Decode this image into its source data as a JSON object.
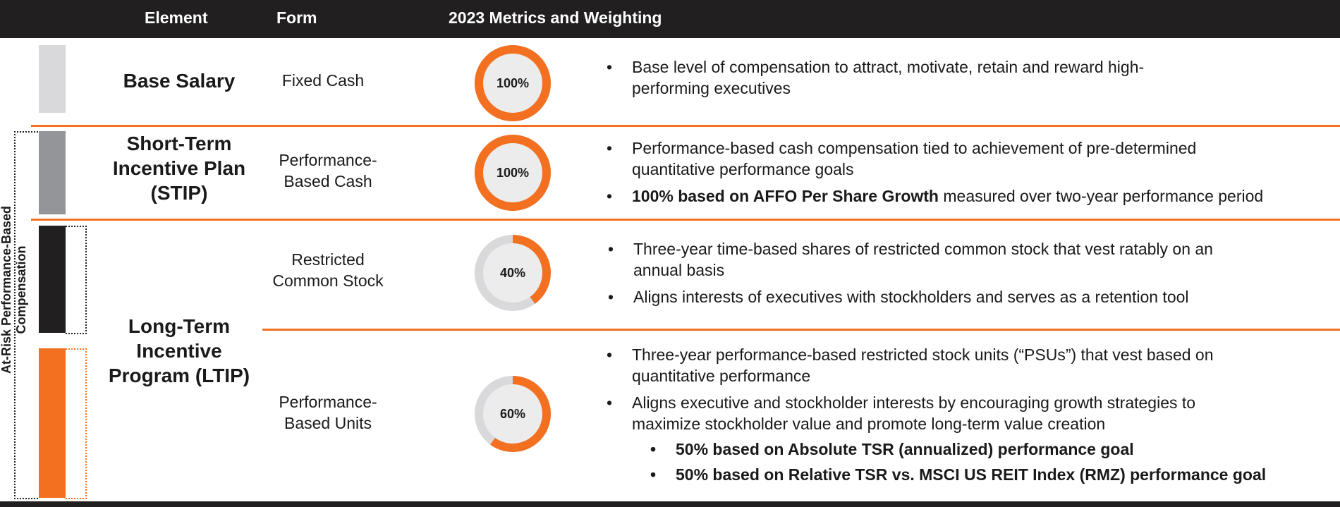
{
  "header": {
    "col_element": "Element",
    "col_form": "Form",
    "col_metrics": "2023 Metrics and Weighting"
  },
  "side_label": "At-Risk Performance-Based Compensation",
  "colors": {
    "accent": "#f37021",
    "dark": "#221f20",
    "light_gray": "#d9d9db",
    "mid_gray": "#939598",
    "ring_gray": "#d9d9db"
  },
  "rows": [
    {
      "element": "Base Salary",
      "form": "Fixed Cash",
      "weight_label": "100%",
      "weight_pct": 100,
      "bullets": [
        "Base level of compensation to attract, motivate, retain and reward high-performing executives"
      ]
    },
    {
      "element": "Short-Term Incentive Plan (STIP)",
      "form": "Performance-Based Cash",
      "weight_label": "100%",
      "weight_pct": 100,
      "bullets": [
        "Performance-based cash compensation tied to achievement of pre-determined quantitative performance goals"
      ],
      "bullet_bold_prefix": "100% based on AFFO Per Share Growth",
      "bullet_rest": " measured over two-year performance period"
    },
    {
      "element": "Long-Term Incentive Program (LTIP)",
      "form": "Restricted Common Stock",
      "weight_label": "40%",
      "weight_pct": 40,
      "bullets": [
        "Three-year time-based shares of restricted common stock that vest ratably on an annual basis",
        "Aligns interests of executives with stockholders and serves as a retention tool"
      ]
    },
    {
      "form": "Performance-Based Units",
      "weight_label": "60%",
      "weight_pct": 60,
      "bullets": [
        "Three-year performance-based restricted stock units (“PSUs”) that vest based on quantitative performance",
        "Aligns executive and stockholder interests by encouraging growth strategies to maximize stockholder value and promote long-term value creation"
      ],
      "sub_bullets": [
        "50% based on Absolute TSR (annualized) performance goal",
        "50% based on Relative TSR vs. MSCI US REIT Index (RMZ) performance goal"
      ]
    }
  ]
}
